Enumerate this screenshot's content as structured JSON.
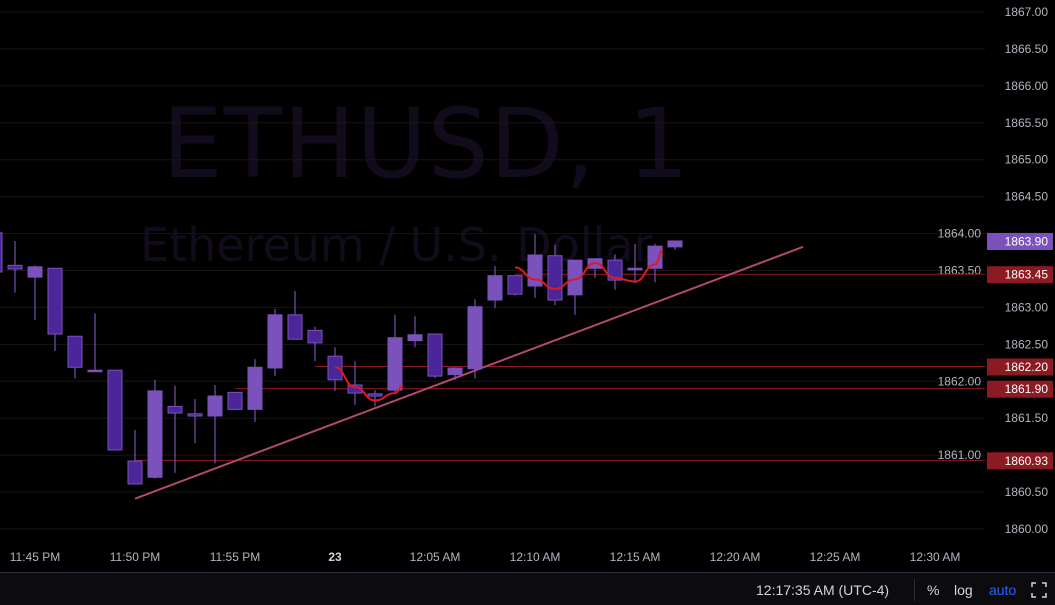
{
  "watermark": {
    "symbol": "ETHUSD, 1",
    "description": "Ethereum / U.S. Dollar"
  },
  "status_bar": {
    "time": "12:17:35 AM (UTC-4)",
    "percent_label": "%",
    "log_label": "log",
    "auto_label": "auto",
    "fullscreen_icon": "corners-icon"
  },
  "colors": {
    "up": "#7b52bb",
    "down": "#4a2699",
    "wick": "#8a62d0",
    "trendline": "#b04a6e",
    "curve": "#e0191e",
    "hline": "#8b1a22",
    "last_price": "#7b52bb",
    "auto": "#2962ff"
  },
  "chart_data": {
    "type": "candlestick",
    "timeframe": "1",
    "ylim": [
      1860.0,
      1867.0
    ],
    "grid": "horizontal",
    "y_ticks": [
      "1867.00",
      "1866.50",
      "1866.00",
      "1865.50",
      "1865.00",
      "1864.50",
      "1864.00",
      "1863.50",
      "1863.00",
      "1862.50",
      "1862.00",
      "1861.50",
      "1861.00",
      "1860.50",
      "1860.00"
    ],
    "x_ticks": [
      {
        "t": "23:45",
        "label": "11:45 PM"
      },
      {
        "t": "23:50",
        "label": "11:50 PM"
      },
      {
        "t": "23:55",
        "label": "11:55 PM"
      },
      {
        "t": "00:00",
        "label": "23",
        "bold": true
      },
      {
        "t": "00:05",
        "label": "12:05 AM"
      },
      {
        "t": "00:10",
        "label": "12:10 AM"
      },
      {
        "t": "00:15",
        "label": "12:15 AM"
      },
      {
        "t": "00:20",
        "label": "12:20 AM"
      },
      {
        "t": "00:25",
        "label": "12:25 AM"
      },
      {
        "t": "00:30",
        "label": "12:30 AM"
      }
    ],
    "candles": [
      {
        "t": "23:43",
        "o": 1864.01,
        "h": 1864.01,
        "l": 1863.48,
        "c": 1863.48
      },
      {
        "t": "23:44",
        "o": 1863.57,
        "h": 1863.9,
        "l": 1863.2,
        "c": 1863.52
      },
      {
        "t": "23:45",
        "o": 1863.41,
        "h": 1863.57,
        "l": 1862.83,
        "c": 1863.55
      },
      {
        "t": "23:46",
        "o": 1863.53,
        "h": 1863.53,
        "l": 1862.41,
        "c": 1862.64
      },
      {
        "t": "23:47",
        "o": 1862.61,
        "h": 1862.61,
        "l": 1862.04,
        "c": 1862.19
      },
      {
        "t": "23:48",
        "o": 1862.15,
        "h": 1862.92,
        "l": 1862.14,
        "c": 1862.15
      },
      {
        "t": "23:49",
        "o": 1862.15,
        "h": 1862.15,
        "l": 1861.07,
        "c": 1861.07
      },
      {
        "t": "23:50",
        "o": 1860.92,
        "h": 1861.34,
        "l": 1860.61,
        "c": 1860.61
      },
      {
        "t": "23:51",
        "o": 1860.7,
        "h": 1862.02,
        "l": 1860.68,
        "c": 1861.87
      },
      {
        "t": "23:52",
        "o": 1861.66,
        "h": 1861.94,
        "l": 1860.76,
        "c": 1861.57
      },
      {
        "t": "23:53",
        "o": 1861.56,
        "h": 1861.76,
        "l": 1861.16,
        "c": 1861.53
      },
      {
        "t": "23:54",
        "o": 1861.53,
        "h": 1861.95,
        "l": 1860.89,
        "c": 1861.8
      },
      {
        "t": "23:55",
        "o": 1861.85,
        "h": 1861.85,
        "l": 1861.61,
        "c": 1861.62
      },
      {
        "t": "23:56",
        "o": 1861.62,
        "h": 1862.3,
        "l": 1861.45,
        "c": 1862.19
      },
      {
        "t": "23:57",
        "o": 1862.18,
        "h": 1862.98,
        "l": 1862.07,
        "c": 1862.9
      },
      {
        "t": "23:58",
        "o": 1862.9,
        "h": 1863.22,
        "l": 1862.57,
        "c": 1862.57
      },
      {
        "t": "23:59",
        "o": 1862.69,
        "h": 1862.74,
        "l": 1862.27,
        "c": 1862.52
      },
      {
        "t": "00:00",
        "o": 1862.34,
        "h": 1862.46,
        "l": 1861.87,
        "c": 1862.02
      },
      {
        "t": "00:01",
        "o": 1861.95,
        "h": 1862.27,
        "l": 1861.68,
        "c": 1861.84
      },
      {
        "t": "00:02",
        "o": 1861.83,
        "h": 1861.88,
        "l": 1861.66,
        "c": 1861.8
      },
      {
        "t": "00:03",
        "o": 1861.88,
        "h": 1862.9,
        "l": 1861.85,
        "c": 1862.59
      },
      {
        "t": "00:04",
        "o": 1862.55,
        "h": 1862.88,
        "l": 1862.46,
        "c": 1862.63
      },
      {
        "t": "00:05",
        "o": 1862.64,
        "h": 1862.64,
        "l": 1862.04,
        "c": 1862.07
      },
      {
        "t": "00:06",
        "o": 1862.09,
        "h": 1862.19,
        "l": 1862.02,
        "c": 1862.18
      },
      {
        "t": "00:07",
        "o": 1862.17,
        "h": 1863.11,
        "l": 1862.04,
        "c": 1863.01
      },
      {
        "t": "00:08",
        "o": 1863.1,
        "h": 1863.56,
        "l": 1862.99,
        "c": 1863.43
      },
      {
        "t": "00:09",
        "o": 1863.43,
        "h": 1863.43,
        "l": 1863.16,
        "c": 1863.18
      },
      {
        "t": "00:10",
        "o": 1863.29,
        "h": 1863.99,
        "l": 1863.13,
        "c": 1863.71
      },
      {
        "t": "00:11",
        "o": 1863.7,
        "h": 1863.85,
        "l": 1863.03,
        "c": 1863.1
      },
      {
        "t": "00:12",
        "o": 1863.17,
        "h": 1863.64,
        "l": 1862.9,
        "c": 1863.64
      },
      {
        "t": "00:13",
        "o": 1863.53,
        "h": 1863.66,
        "l": 1863.4,
        "c": 1863.66
      },
      {
        "t": "00:14",
        "o": 1863.64,
        "h": 1863.72,
        "l": 1863.24,
        "c": 1863.37
      },
      {
        "t": "00:15",
        "o": 1863.53,
        "h": 1863.86,
        "l": 1863.33,
        "c": 1863.53
      },
      {
        "t": "00:16",
        "o": 1863.53,
        "h": 1863.86,
        "l": 1863.34,
        "c": 1863.83
      },
      {
        "t": "00:17",
        "o": 1863.82,
        "h": 1863.9,
        "l": 1863.78,
        "c": 1863.9
      }
    ],
    "last_price": "1863.90",
    "horizontal_lines": [
      {
        "price": 1863.45,
        "label": "1863.45",
        "from": "00:09"
      },
      {
        "price": 1862.2,
        "label": "1862.20",
        "from": "23:59"
      },
      {
        "price": 1861.9,
        "label": "1861.90",
        "from": "23:55"
      },
      {
        "price": 1860.93,
        "label": "1860.93",
        "from": "23:50"
      }
    ],
    "trendline": [
      [
        "23:50",
        1860.41
      ],
      [
        "00:23",
        1863.82
      ]
    ],
    "curves": [
      [
        [
          "00:00",
          1862.19
        ],
        [
          "00:01",
          1861.92
        ],
        [
          "00:02",
          1861.74
        ],
        [
          "00:03",
          1861.84
        ],
        [
          "00:03",
          1861.94
        ]
      ],
      [
        [
          "00:09",
          1863.54
        ],
        [
          "00:10",
          1863.38
        ],
        [
          "00:11",
          1863.25
        ],
        [
          "00:12",
          1863.38
        ],
        [
          "00:13",
          1863.6
        ],
        [
          "00:14",
          1863.4
        ],
        [
          "00:15",
          1863.35
        ],
        [
          "00:16",
          1863.58
        ],
        [
          "00:16",
          1863.78
        ]
      ]
    ]
  }
}
